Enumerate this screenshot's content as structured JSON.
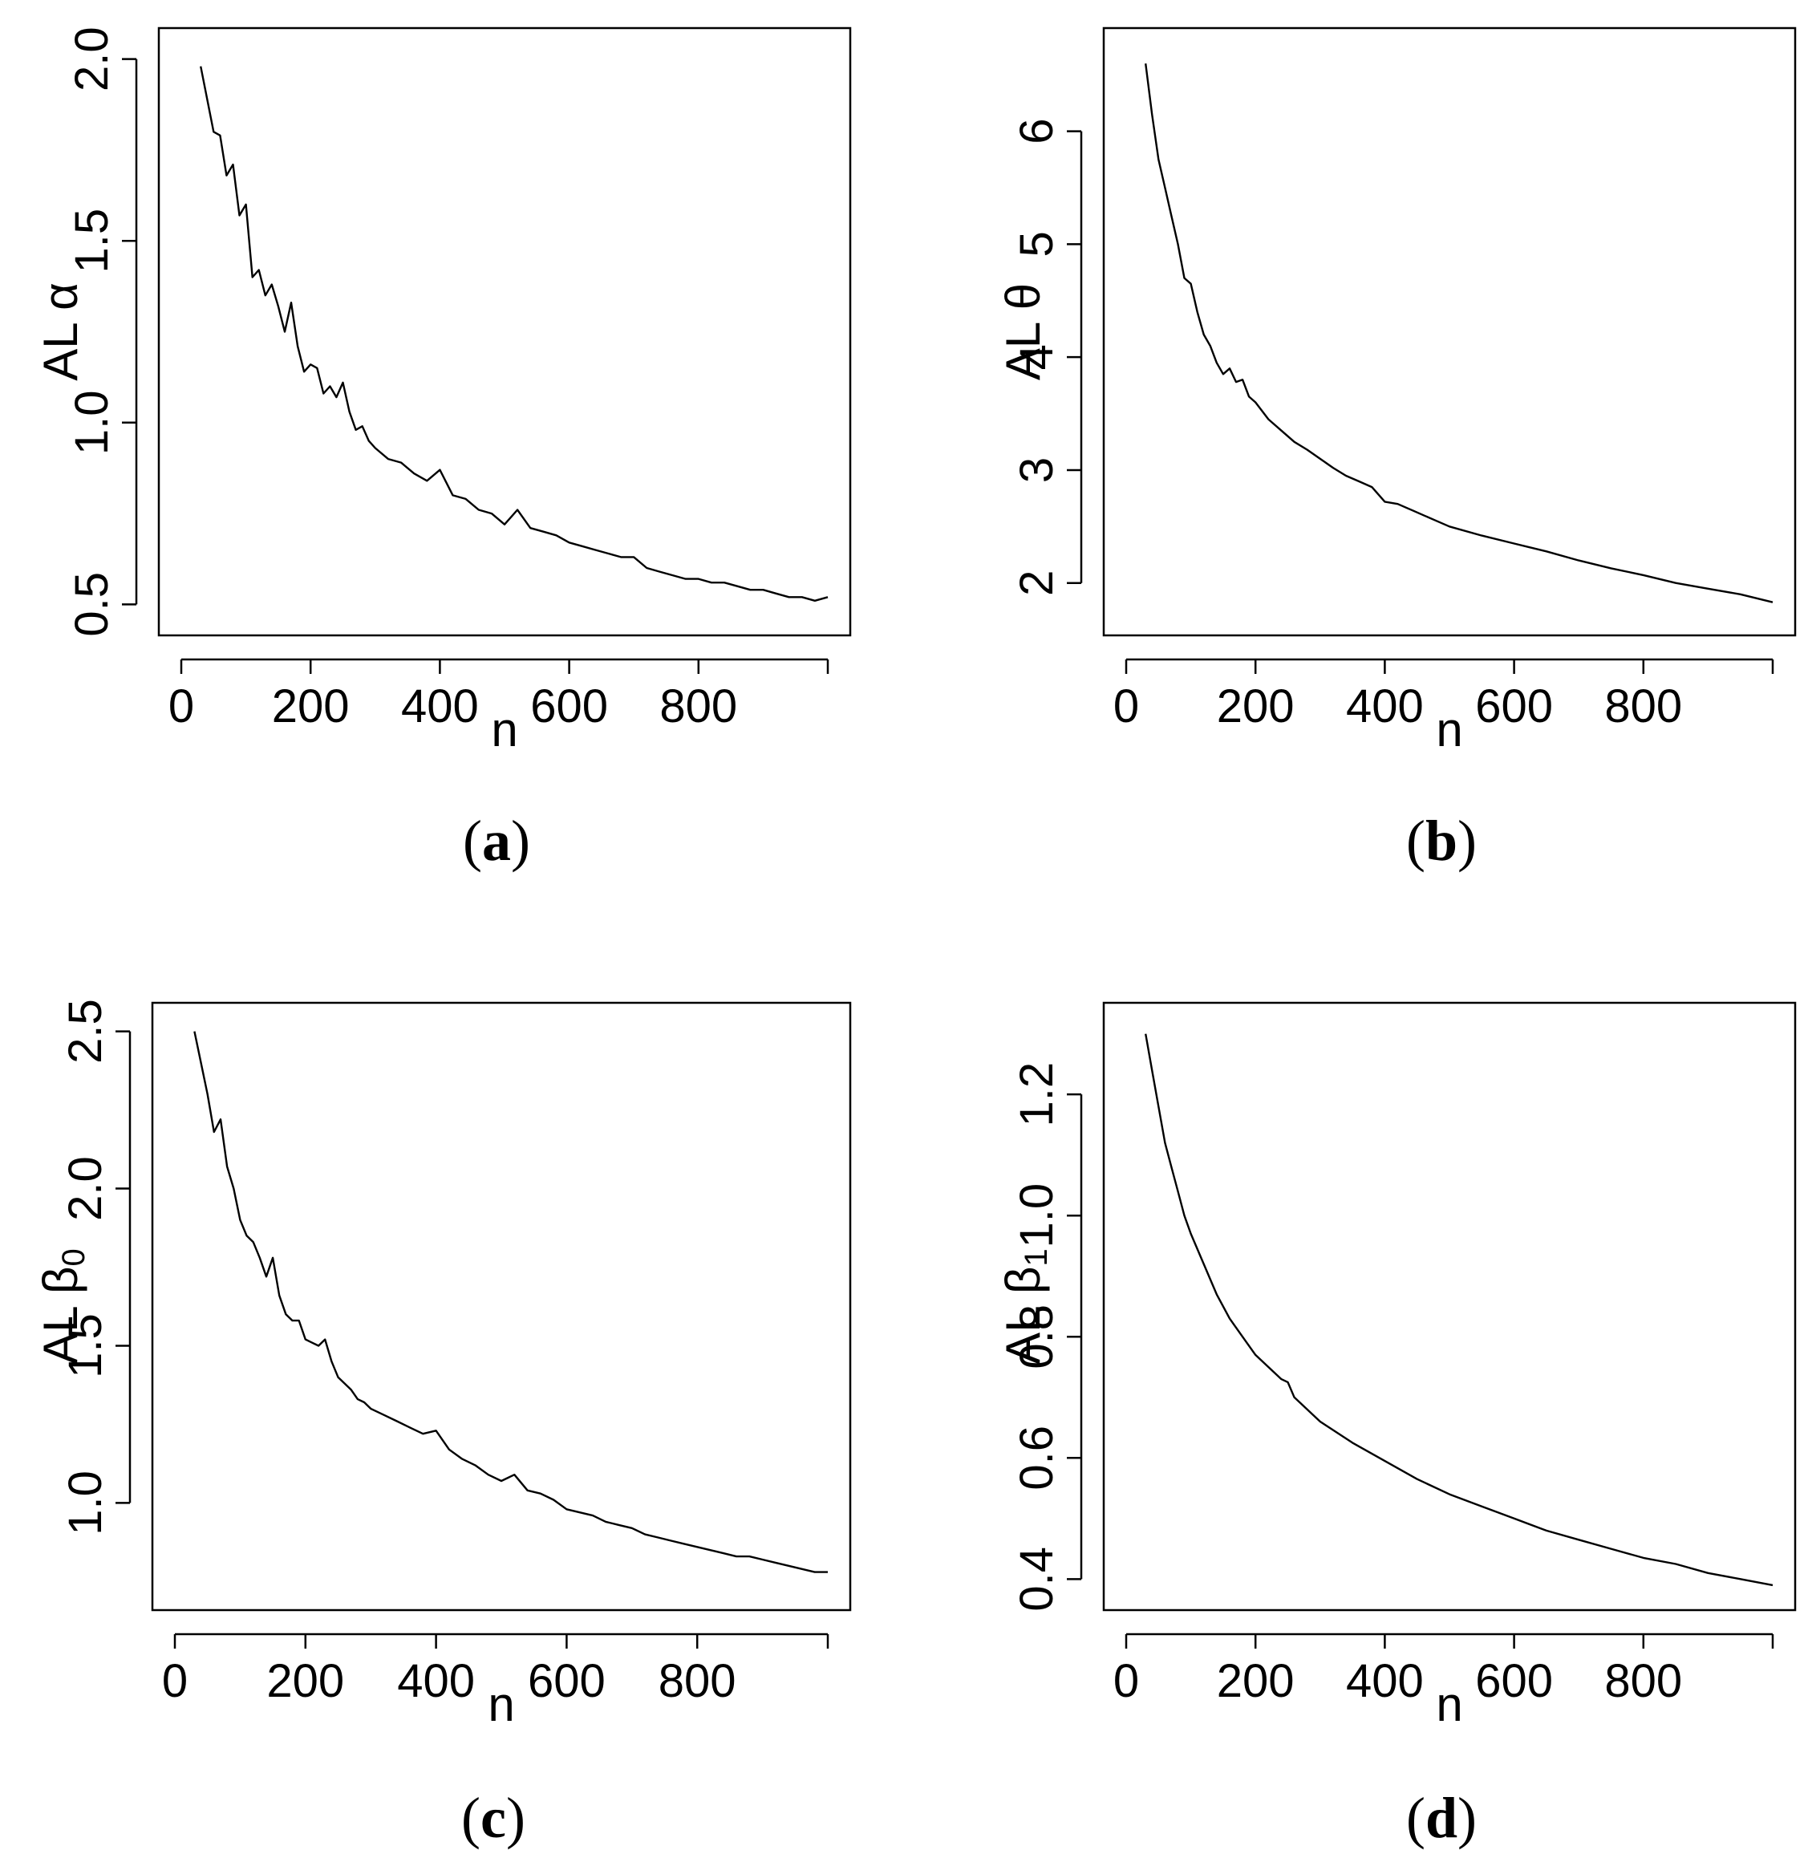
{
  "chart_data": [
    {
      "type": "line",
      "caption": {
        "open": "(",
        "letter": "a",
        "close": ")"
      },
      "xlabel": "n",
      "ylabel": {
        "prefix": "AL ",
        "symbol": "α",
        "subscript": ""
      },
      "xlim": [
        0,
        1000
      ],
      "ylim": [
        0.45,
        2.05
      ],
      "xticks": [
        0,
        200,
        400,
        600,
        800,
        1000
      ],
      "xtick_labels": [
        "0",
        "200",
        "400",
        "600",
        "800",
        ""
      ],
      "yticks": [
        0.5,
        1.0,
        1.5,
        2.0
      ],
      "ytick_labels": [
        "0.5",
        "1.0",
        "1.5",
        "2.0"
      ],
      "grid": false,
      "x": [
        30,
        50,
        60,
        70,
        80,
        90,
        100,
        110,
        120,
        130,
        140,
        150,
        160,
        170,
        180,
        190,
        200,
        210,
        220,
        230,
        240,
        250,
        260,
        270,
        280,
        290,
        300,
        320,
        340,
        360,
        380,
        400,
        420,
        440,
        460,
        480,
        500,
        520,
        540,
        560,
        580,
        600,
        620,
        640,
        660,
        680,
        700,
        720,
        740,
        760,
        780,
        800,
        820,
        840,
        860,
        880,
        900,
        920,
        940,
        960,
        980,
        1000
      ],
      "y": [
        1.98,
        1.8,
        1.79,
        1.68,
        1.71,
        1.57,
        1.6,
        1.4,
        1.42,
        1.35,
        1.38,
        1.32,
        1.25,
        1.33,
        1.21,
        1.14,
        1.16,
        1.15,
        1.08,
        1.1,
        1.07,
        1.11,
        1.03,
        0.98,
        0.99,
        0.95,
        0.93,
        0.9,
        0.89,
        0.86,
        0.84,
        0.87,
        0.8,
        0.79,
        0.76,
        0.75,
        0.72,
        0.76,
        0.71,
        0.7,
        0.69,
        0.67,
        0.66,
        0.65,
        0.64,
        0.63,
        0.63,
        0.6,
        0.59,
        0.58,
        0.57,
        0.57,
        0.56,
        0.56,
        0.55,
        0.54,
        0.54,
        0.53,
        0.52,
        0.52,
        0.51,
        0.52
      ]
    },
    {
      "type": "line",
      "caption": {
        "open": "(",
        "letter": "b",
        "close": ")"
      },
      "xlabel": "n",
      "ylabel": {
        "prefix": "AL ",
        "symbol": "θ",
        "subscript": ""
      },
      "xlim": [
        0,
        1000
      ],
      "ylim": [
        1.65,
        6.8
      ],
      "xticks": [
        0,
        200,
        400,
        600,
        800,
        1000
      ],
      "xtick_labels": [
        "0",
        "200",
        "400",
        "600",
        "800",
        ""
      ],
      "yticks": [
        2,
        3,
        4,
        5,
        6
      ],
      "ytick_labels": [
        "2",
        "3",
        "4",
        "5",
        "6"
      ],
      "grid": false,
      "x": [
        30,
        40,
        50,
        60,
        70,
        80,
        90,
        100,
        110,
        120,
        130,
        140,
        150,
        160,
        170,
        180,
        190,
        200,
        220,
        240,
        260,
        280,
        300,
        320,
        340,
        360,
        380,
        400,
        420,
        440,
        460,
        480,
        500,
        550,
        600,
        650,
        700,
        750,
        800,
        850,
        900,
        950,
        1000
      ],
      "y": [
        6.6,
        6.15,
        5.75,
        5.5,
        5.25,
        5.0,
        4.7,
        4.65,
        4.4,
        4.2,
        4.1,
        3.95,
        3.85,
        3.9,
        3.78,
        3.8,
        3.65,
        3.6,
        3.45,
        3.35,
        3.25,
        3.18,
        3.1,
        3.02,
        2.95,
        2.9,
        2.85,
        2.72,
        2.7,
        2.65,
        2.6,
        2.55,
        2.5,
        2.42,
        2.35,
        2.28,
        2.2,
        2.13,
        2.07,
        2.0,
        1.95,
        1.9,
        1.83
      ]
    },
    {
      "type": "line",
      "caption": {
        "open": "(",
        "letter": "c",
        "close": ")"
      },
      "xlabel": "n",
      "ylabel": {
        "prefix": "AL ",
        "symbol": "β",
        "subscript": "0"
      },
      "xlim": [
        0,
        1000
      ],
      "ylim": [
        0.7,
        2.55
      ],
      "xticks": [
        0,
        200,
        400,
        600,
        800,
        1000
      ],
      "xtick_labels": [
        "0",
        "200",
        "400",
        "600",
        "800",
        ""
      ],
      "yticks": [
        1.0,
        1.5,
        2.0,
        2.5
      ],
      "ytick_labels": [
        "1.0",
        "1.5",
        "2.0",
        "2.5"
      ],
      "grid": false,
      "x": [
        30,
        50,
        60,
        70,
        80,
        90,
        100,
        110,
        120,
        130,
        140,
        150,
        160,
        170,
        180,
        190,
        200,
        210,
        220,
        230,
        240,
        250,
        260,
        270,
        280,
        290,
        300,
        320,
        340,
        360,
        380,
        400,
        420,
        440,
        460,
        480,
        500,
        520,
        540,
        560,
        580,
        600,
        620,
        640,
        660,
        680,
        700,
        720,
        740,
        760,
        780,
        800,
        820,
        840,
        860,
        880,
        900,
        920,
        940,
        960,
        980,
        1000
      ],
      "y": [
        2.5,
        2.3,
        2.18,
        2.22,
        2.07,
        2.0,
        1.9,
        1.85,
        1.83,
        1.78,
        1.72,
        1.78,
        1.66,
        1.6,
        1.58,
        1.58,
        1.52,
        1.51,
        1.5,
        1.52,
        1.45,
        1.4,
        1.38,
        1.36,
        1.33,
        1.32,
        1.3,
        1.28,
        1.26,
        1.24,
        1.22,
        1.23,
        1.17,
        1.14,
        1.12,
        1.09,
        1.07,
        1.09,
        1.04,
        1.03,
        1.01,
        0.98,
        0.97,
        0.96,
        0.94,
        0.93,
        0.92,
        0.9,
        0.89,
        0.88,
        0.87,
        0.86,
        0.85,
        0.84,
        0.83,
        0.83,
        0.82,
        0.81,
        0.8,
        0.79,
        0.78,
        0.78
      ]
    },
    {
      "type": "line",
      "caption": {
        "open": "(",
        "letter": "d",
        "close": ")"
      },
      "xlabel": "n",
      "ylabel": {
        "prefix": "AL ",
        "symbol": "β",
        "subscript": "1"
      },
      "xlim": [
        0,
        1000
      ],
      "ylim": [
        0.37,
        1.33
      ],
      "xticks": [
        0,
        200,
        400,
        600,
        800,
        1000
      ],
      "xtick_labels": [
        "0",
        "200",
        "400",
        "600",
        "800",
        ""
      ],
      "yticks": [
        0.4,
        0.6,
        0.8,
        1.0,
        1.2
      ],
      "ytick_labels": [
        "0.4",
        "0.6",
        "0.8",
        "1.0",
        "1.2"
      ],
      "grid": false,
      "x": [
        30,
        40,
        50,
        60,
        70,
        80,
        90,
        100,
        120,
        140,
        160,
        180,
        200,
        220,
        240,
        250,
        260,
        280,
        300,
        350,
        400,
        450,
        500,
        550,
        600,
        650,
        700,
        750,
        800,
        850,
        900,
        950,
        1000
      ],
      "y": [
        1.3,
        1.24,
        1.18,
        1.12,
        1.08,
        1.04,
        1.0,
        0.97,
        0.92,
        0.87,
        0.83,
        0.8,
        0.77,
        0.75,
        0.73,
        0.725,
        0.7,
        0.68,
        0.66,
        0.625,
        0.595,
        0.565,
        0.54,
        0.52,
        0.5,
        0.48,
        0.465,
        0.45,
        0.435,
        0.425,
        0.41,
        0.4,
        0.39
      ]
    }
  ]
}
